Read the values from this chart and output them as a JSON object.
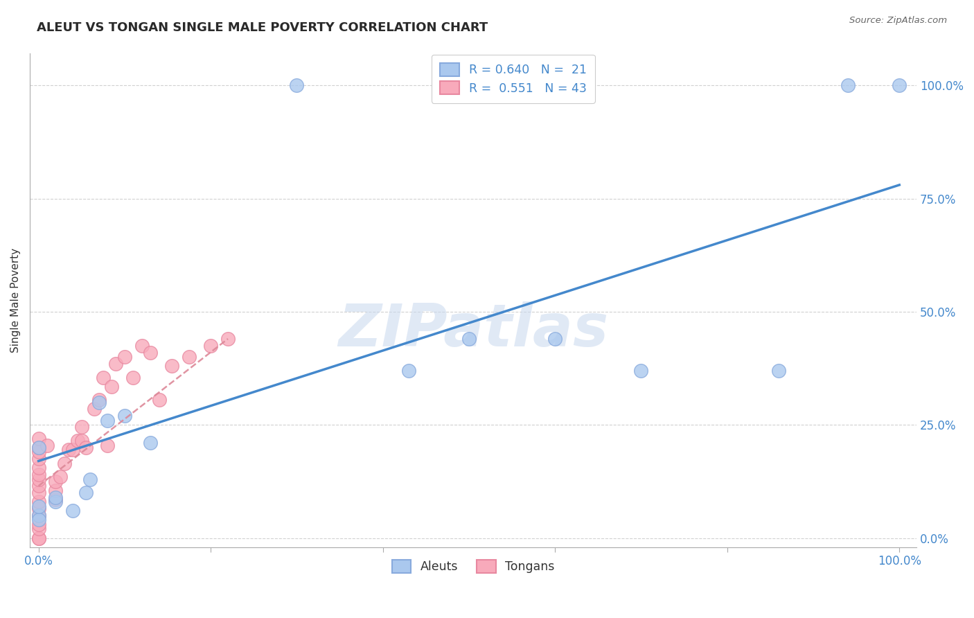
{
  "title": "ALEUT VS TONGAN SINGLE MALE POVERTY CORRELATION CHART",
  "source": "Source: ZipAtlas.com",
  "ylabel": "Single Male Poverty",
  "legend_blue_r": "R = 0.640",
  "legend_blue_n": "N =  21",
  "legend_pink_r": "R =  0.551",
  "legend_pink_n": "N = 43",
  "watermark": "ZIPatlas",
  "blue_scatter_color": "#aac8ee",
  "blue_scatter_edge": "#88aadd",
  "pink_scatter_color": "#f8aabb",
  "pink_scatter_edge": "#e888a0",
  "blue_line_color": "#4488cc",
  "pink_line_color": "#dd8898",
  "grid_color": "#cccccc",
  "aleuts_x": [
    0.3,
    0.0,
    0.0,
    0.02,
    0.04,
    0.055,
    0.07,
    0.5,
    0.6,
    0.7,
    0.94,
    1.0,
    0.0,
    0.02,
    0.06,
    0.13,
    0.43,
    0.86,
    0.0,
    0.08,
    0.1
  ],
  "aleuts_y": [
    1.0,
    0.2,
    0.05,
    0.08,
    0.06,
    0.1,
    0.3,
    0.44,
    0.44,
    0.37,
    1.0,
    1.0,
    0.04,
    0.09,
    0.13,
    0.21,
    0.37,
    0.37,
    0.07,
    0.26,
    0.27
  ],
  "tongans_x": [
    0.0,
    0.0,
    0.0,
    0.0,
    0.0,
    0.0,
    0.0,
    0.0,
    0.0,
    0.0,
    0.0,
    0.0,
    0.0,
    0.0,
    0.0,
    0.0,
    0.01,
    0.02,
    0.02,
    0.02,
    0.025,
    0.03,
    0.035,
    0.04,
    0.045,
    0.05,
    0.05,
    0.055,
    0.065,
    0.07,
    0.075,
    0.08,
    0.085,
    0.09,
    0.1,
    0.11,
    0.12,
    0.13,
    0.14,
    0.155,
    0.175,
    0.2,
    0.22
  ],
  "tongans_y": [
    0.0,
    0.0,
    0.02,
    0.03,
    0.05,
    0.065,
    0.08,
    0.1,
    0.115,
    0.13,
    0.14,
    0.155,
    0.175,
    0.19,
    0.2,
    0.22,
    0.205,
    0.085,
    0.105,
    0.125,
    0.135,
    0.165,
    0.195,
    0.195,
    0.215,
    0.215,
    0.245,
    0.2,
    0.285,
    0.305,
    0.355,
    0.205,
    0.335,
    0.385,
    0.4,
    0.355,
    0.425,
    0.41,
    0.305,
    0.38,
    0.4,
    0.425,
    0.44
  ],
  "blue_line_x": [
    0.0,
    1.0
  ],
  "blue_line_y": [
    0.17,
    0.78
  ],
  "pink_line_x": [
    0.0,
    0.22
  ],
  "pink_line_y": [
    0.115,
    0.44
  ],
  "xtick_positions": [
    0.0,
    0.2,
    0.4,
    0.6,
    0.8,
    1.0
  ],
  "ytick_positions": [
    0.0,
    0.25,
    0.5,
    0.75,
    1.0
  ],
  "ytick_labels": [
    "0.0%",
    "25.0%",
    "50.0%",
    "75.0%",
    "100.0%"
  ],
  "xlim": [
    -0.01,
    1.02
  ],
  "ylim": [
    -0.02,
    1.07
  ]
}
